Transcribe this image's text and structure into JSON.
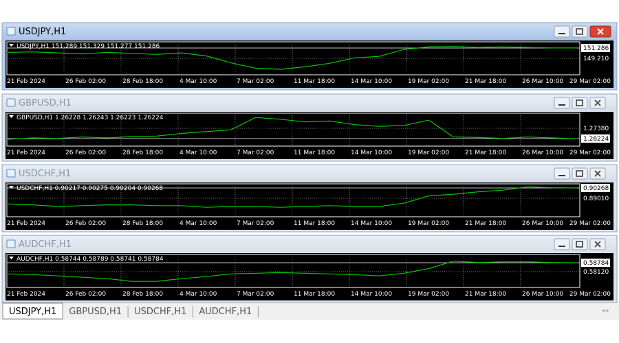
{
  "windows": [
    {
      "title": "USDJPY,H1",
      "active": true,
      "ohlc_label": "USDJPY,H1  151.289 151.329 151.277 151.286",
      "current_price": 151.286,
      "yticks": [
        {
          "value": 149.21,
          "label": "149.210"
        }
      ],
      "ylim": [
        145.89,
        152.53
      ],
      "x_labels": [
        "21 Feb 2024",
        "26 Feb 02:00",
        "28 Feb 18:00",
        "4 Mar 10:00",
        "7 Mar 02:00",
        "11 Mar 18:00",
        "14 Mar 10:00",
        "19 Mar 02:00",
        "21 Mar 18:00",
        "26 Mar 10:00",
        "29 Mar 02:00"
      ],
      "line_color": "#00c800",
      "values": [
        150.4,
        150.5,
        150.3,
        150.1,
        150.4,
        150.2,
        150.0,
        150.3,
        149.7,
        148.3,
        147.2,
        147.0,
        147.5,
        148.2,
        149.3,
        149.6,
        151.0,
        151.5,
        151.6,
        151.4,
        151.5,
        151.4,
        151.3,
        151.3
      ]
    },
    {
      "title": "GBPUSD,H1",
      "active": false,
      "ohlc_label": "GBPUSD,H1  1.26228 1.26243 1.26223 1.26224",
      "current_price": 1.26224,
      "yticks": [
        {
          "value": 1.2738,
          "label": "1.27380"
        }
      ],
      "ylim": [
        1.25376,
        1.29076
      ],
      "x_labels": [
        "21 Feb 2024",
        "26 Feb 02:00",
        "28 Feb 18:00",
        "4 Mar 10:00",
        "7 Mar 02:00",
        "11 Mar 18:00",
        "14 Mar 10:00",
        "19 Mar 02:00",
        "21 Mar 18:00",
        "26 Mar 10:00",
        "29 Mar 02:00"
      ],
      "line_color": "#00c800",
      "values": [
        1.2615,
        1.263,
        1.2625,
        1.264,
        1.263,
        1.2645,
        1.265,
        1.268,
        1.27,
        1.272,
        1.286,
        1.284,
        1.281,
        1.282,
        1.278,
        1.276,
        1.277,
        1.283,
        1.264,
        1.2635,
        1.2625,
        1.264,
        1.263,
        1.2622
      ]
    },
    {
      "title": "USDCHF,H1",
      "active": false,
      "ohlc_label": "USDCHF,H1  0.90217 0.90275 0.90204 0.90268",
      "current_price": 0.90268,
      "yticks": [
        {
          "value": 0.8901,
          "label": "0.89010"
        }
      ],
      "ylim": [
        0.8674,
        0.90771
      ],
      "x_labels": [
        "21 Feb 2024",
        "26 Feb 02:00",
        "28 Feb 18:00",
        "4 Mar 10:00",
        "7 Mar 02:00",
        "11 Mar 18:00",
        "14 Mar 10:00",
        "19 Mar 02:00",
        "21 Mar 18:00",
        "26 Mar 10:00",
        "29 Mar 02:00"
      ],
      "line_color": "#00c800",
      "values": [
        0.883,
        0.882,
        0.88,
        0.881,
        0.882,
        0.882,
        0.881,
        0.881,
        0.879,
        0.88,
        0.88,
        0.879,
        0.88,
        0.881,
        0.88,
        0.88,
        0.884,
        0.893,
        0.895,
        0.898,
        0.9,
        0.904,
        0.903,
        0.9027
      ]
    },
    {
      "title": "AUDCHF,H1",
      "active": false,
      "ohlc_label": "AUDCHF,H1  0.58744 0.58789 0.58741 0.58784",
      "current_price": 0.58784,
      "yticks": [
        {
          "value": 0.5812,
          "label": "0.58120"
        }
      ],
      "ylim": [
        0.56944,
        0.59397
      ],
      "x_labels": [
        "21 Feb 2024",
        "26 Feb 02:00",
        "28 Feb 18:00",
        "4 Mar 10:00",
        "7 Mar 02:00",
        "11 Mar 18:00",
        "14 Mar 10:00",
        "19 Mar 02:00",
        "21 Mar 18:00",
        "26 Mar 10:00",
        "29 Mar 02:00"
      ],
      "line_color": "#00c800",
      "values": [
        0.5795,
        0.579,
        0.578,
        0.577,
        0.576,
        0.574,
        0.574,
        0.576,
        0.5775,
        0.5795,
        0.58,
        0.5805,
        0.58,
        0.5795,
        0.579,
        0.578,
        0.58,
        0.5835,
        0.589,
        0.588,
        0.5885,
        0.5885,
        0.588,
        0.5878
      ]
    }
  ],
  "tabs": [
    "USDJPY,H1",
    "GBPUSD,H1",
    "USDCHF,H1",
    "AUDCHF,H1"
  ]
}
